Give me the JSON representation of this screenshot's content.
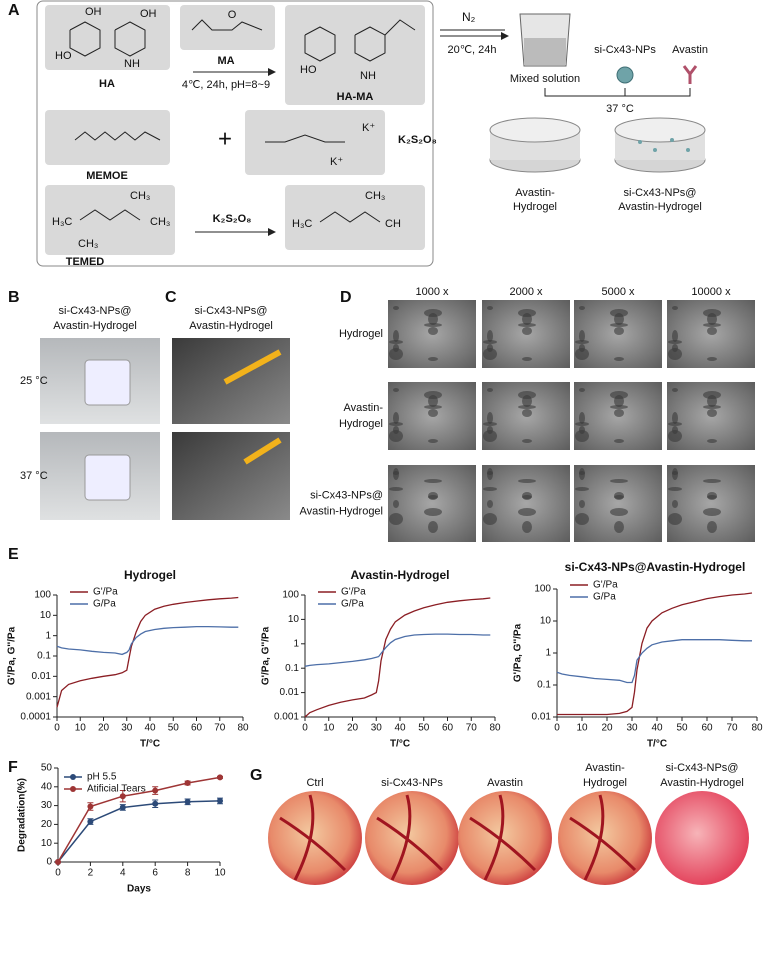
{
  "panel_labels": [
    "A",
    "B",
    "C",
    "D",
    "E",
    "F",
    "G"
  ],
  "scheme": {
    "ha": "HA",
    "ma": "MA",
    "ha_ma": "HA-MA",
    "memoe": "MEMOE",
    "temed": "TEMED",
    "persulfate": "K₂S₂O₈",
    "ma_condition": "4℃, 24h, pH=8~9",
    "initiator": "K₂S₂O₈",
    "plus": "+",
    "gas": "N₂",
    "gel_condition": "20℃, 24h",
    "mixed": "Mixed solution",
    "nps": "si-Cx43-NPs",
    "avastin": "Avastin",
    "temperature": "37 °C",
    "gel1": [
      "Avastin-",
      "Hydrogel"
    ],
    "gel2": [
      "si-Cx43-NPs@",
      "Avastin-Hydrogel"
    ],
    "atoms": {
      "oh": "OH",
      "ho": "HO",
      "nh": "NH",
      "o": "O",
      "ch3": "CH₃",
      "h3c": "H₃C",
      "n": "N",
      "k": "K⁺",
      "ch": "CH"
    }
  },
  "panel_b": {
    "title": [
      "si-Cx43-NPs@",
      "Avastin-Hydrogel"
    ],
    "rows": [
      "25 °C",
      "37 °C"
    ]
  },
  "panel_c": {
    "title": [
      "si-Cx43-NPs@",
      "Avastin-Hydrogel"
    ]
  },
  "panel_d": {
    "columns": [
      "1000 x",
      "2000 x",
      "5000 x",
      "10000 x"
    ],
    "rows": [
      [
        "Hydrogel"
      ],
      [
        "Avastin-",
        "Hydrogel"
      ],
      [
        "si-Cx43-NPs@",
        "Avastin-Hydrogel"
      ]
    ]
  },
  "panel_g": {
    "groups": [
      [
        "Ctrl"
      ],
      [
        "si-Cx43-NPs"
      ],
      [
        "Avastin"
      ],
      [
        "Avastin-",
        "Hydrogel"
      ],
      [
        "si-Cx43-NPs@",
        "Avastin-Hydrogel"
      ]
    ]
  },
  "chart_data": [
    {
      "type": "line",
      "title": "Hydrogel",
      "x_label": "T/°C",
      "y_label": "G'/Pa, G''/Pa",
      "log_scale": true,
      "x": [
        0,
        2,
        5,
        10,
        15,
        20,
        25,
        28,
        30,
        31,
        32,
        34,
        36,
        38,
        42,
        46,
        50,
        55,
        60,
        65,
        70,
        75,
        78
      ],
      "series": [
        {
          "name": "G'/Pa",
          "color": "#8b1e24",
          "values": [
            0.0003,
            0.002,
            0.004,
            0.006,
            0.008,
            0.01,
            0.012,
            0.015,
            0.02,
            0.08,
            0.3,
            1.5,
            5,
            10,
            20,
            28,
            35,
            43,
            50,
            58,
            65,
            70,
            75
          ]
        },
        {
          "name": "G/Pa",
          "color": "#4d6fa8",
          "values": [
            0.3,
            0.25,
            0.22,
            0.2,
            0.17,
            0.15,
            0.14,
            0.12,
            0.15,
            0.2,
            0.4,
            0.8,
            1.2,
            1.6,
            2,
            2.3,
            2.5,
            2.6,
            2.8,
            2.8,
            2.7,
            2.6,
            2.6
          ]
        }
      ],
      "xlim": [
        0,
        80
      ],
      "xticks": [
        0,
        10,
        20,
        30,
        40,
        50,
        60,
        70,
        80
      ],
      "ylim": [
        0.0001,
        100
      ],
      "yticks": [
        0.0001,
        0.001,
        0.01,
        0.1,
        1,
        10,
        100
      ]
    },
    {
      "type": "line",
      "title": "Avastin-Hydrogel",
      "x_label": "T/°C",
      "y_label": "G'/Pa, G''/Pa",
      "log_scale": true,
      "x": [
        0,
        2,
        5,
        10,
        15,
        20,
        25,
        28,
        30,
        31,
        32,
        34,
        36,
        38,
        42,
        46,
        50,
        55,
        60,
        65,
        70,
        75,
        78
      ],
      "series": [
        {
          "name": "G'/Pa",
          "color": "#8b1e24",
          "values": [
            0.001,
            0.0015,
            0.002,
            0.003,
            0.004,
            0.005,
            0.006,
            0.008,
            0.01,
            0.03,
            0.2,
            1.5,
            4,
            8,
            15,
            22,
            30,
            40,
            50,
            58,
            65,
            70,
            75
          ]
        },
        {
          "name": "G/Pa",
          "color": "#4d6fa8",
          "values": [
            0.12,
            0.13,
            0.14,
            0.15,
            0.17,
            0.19,
            0.22,
            0.25,
            0.28,
            0.3,
            0.4,
            0.7,
            1.1,
            1.5,
            2,
            2.3,
            2.4,
            2.5,
            2.5,
            2.4,
            2.4,
            2.3,
            2.3
          ]
        }
      ],
      "xlim": [
        0,
        80
      ],
      "xticks": [
        0,
        10,
        20,
        30,
        40,
        50,
        60,
        70,
        80
      ],
      "ylim": [
        0.001,
        100
      ],
      "yticks": [
        0.001,
        0.01,
        0.1,
        1,
        10,
        100
      ]
    },
    {
      "type": "line",
      "title": "si-Cx43-NPs@Avastin-Hydrogel",
      "x_label": "T/°C",
      "y_label": "G'/Pa, G''/Pa",
      "log_scale": true,
      "x": [
        0,
        2,
        5,
        10,
        15,
        20,
        25,
        28,
        30,
        31,
        32,
        34,
        36,
        38,
        42,
        46,
        50,
        55,
        60,
        65,
        70,
        75,
        78
      ],
      "series": [
        {
          "name": "G'/Pa",
          "color": "#8b1e24",
          "values": [
            0.012,
            0.012,
            0.012,
            0.012,
            0.012,
            0.012,
            0.013,
            0.015,
            0.02,
            0.06,
            0.3,
            2,
            6,
            10,
            18,
            25,
            32,
            40,
            50,
            58,
            65,
            70,
            75
          ]
        },
        {
          "name": "G/Pa",
          "color": "#4d6fa8",
          "values": [
            0.25,
            0.22,
            0.2,
            0.18,
            0.16,
            0.15,
            0.14,
            0.12,
            0.12,
            0.2,
            0.6,
            1,
            1.4,
            1.8,
            2.2,
            2.4,
            2.6,
            2.6,
            2.6,
            2.6,
            2.5,
            2.4,
            2.4
          ]
        }
      ],
      "xlim": [
        0,
        80
      ],
      "xticks": [
        0,
        10,
        20,
        30,
        40,
        50,
        60,
        70,
        80
      ],
      "ylim": [
        0.01,
        100
      ],
      "yticks": [
        0.01,
        0.1,
        1,
        10,
        100
      ]
    },
    {
      "type": "line",
      "x_label": "Days",
      "y_label": "Degradation(%)",
      "log_scale": false,
      "markers": true,
      "x": [
        0,
        2,
        4,
        6,
        8,
        10
      ],
      "series": [
        {
          "name": "pH 5.5",
          "color": "#2c4a78",
          "values": [
            0,
            21.5,
            29,
            31,
            32,
            32.5
          ],
          "errors": [
            0,
            1.5,
            1.5,
            2,
            1.5,
            1.5
          ]
        },
        {
          "name": "Atificial Tears",
          "color": "#9e3535",
          "values": [
            0,
            29.5,
            35,
            38,
            42,
            45
          ],
          "errors": [
            0,
            2,
            3,
            2,
            1,
            0.5
          ]
        }
      ],
      "xlim": [
        0,
        10
      ],
      "xticks": [
        0,
        2,
        4,
        6,
        8,
        10
      ],
      "ylim": [
        0,
        50
      ],
      "yticks": [
        0,
        10,
        20,
        30,
        40,
        50
      ]
    }
  ]
}
